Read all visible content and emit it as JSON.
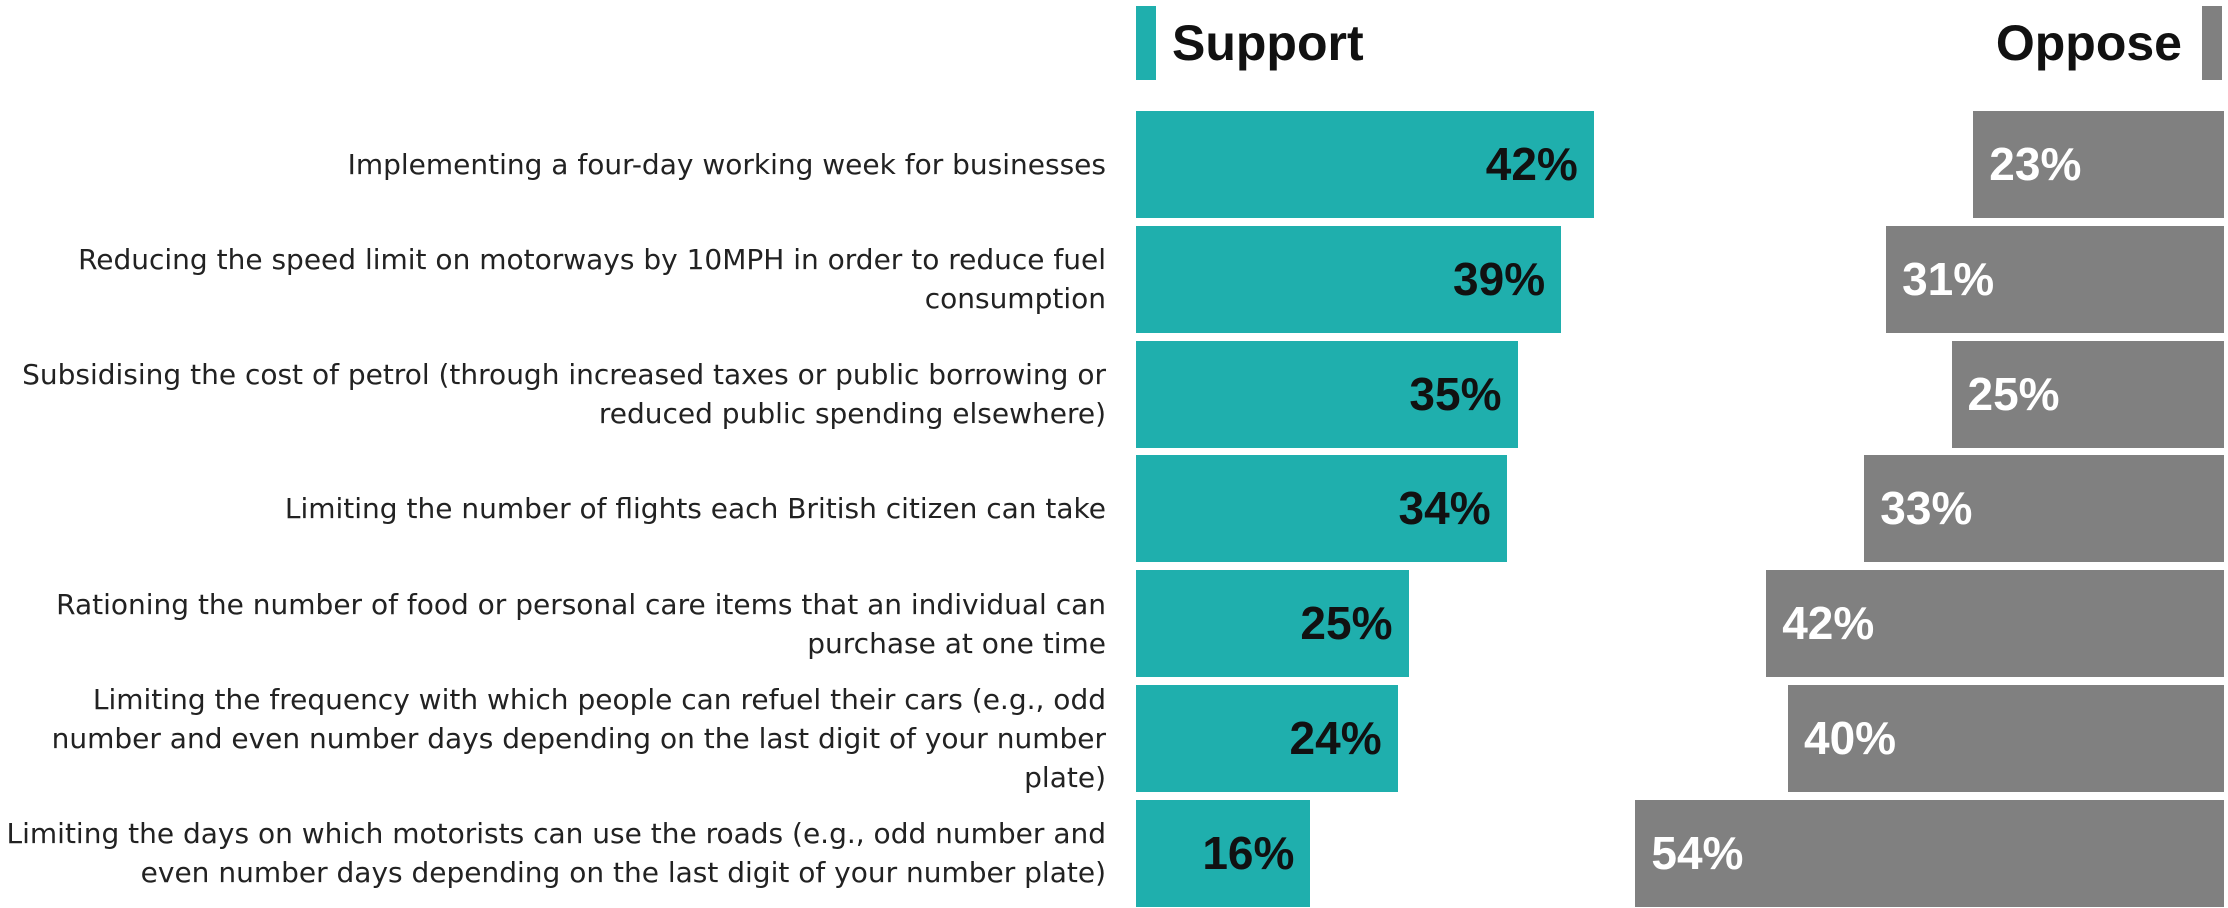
{
  "chart_data": {
    "type": "diverging_bar",
    "categories": [
      "Implementing a four-day working week for businesses",
      "Reducing the speed limit on motorways by 10MPH in order to reduce fuel consumption",
      "Subsidising the cost of petrol (through increased taxes or public borrowing or reduced public spending elsewhere)",
      "Limiting the number of flights each British citizen can take",
      "Rationing the number of food or personal care items that an individual can purchase at one time",
      "Limiting the frequency with which people can refuel their cars (e.g., odd number and even number days depending on the last digit of your number plate)",
      "Limiting the days on which motorists can use the roads (e.g., odd number and even number days depending on the last digit of your number plate)"
    ],
    "series": [
      {
        "name": "Support",
        "color": "#1fafad",
        "values": [
          42,
          39,
          35,
          34,
          25,
          24,
          16
        ],
        "value_labels": [
          "42%",
          "39%",
          "35%",
          "34%",
          "25%",
          "24%",
          "16%"
        ]
      },
      {
        "name": "Oppose",
        "color": "#808080",
        "values": [
          23,
          31,
          25,
          33,
          42,
          40,
          54
        ],
        "value_labels": [
          "23%",
          "31%",
          "25%",
          "33%",
          "42%",
          "40%",
          "54%"
        ]
      }
    ]
  }
}
